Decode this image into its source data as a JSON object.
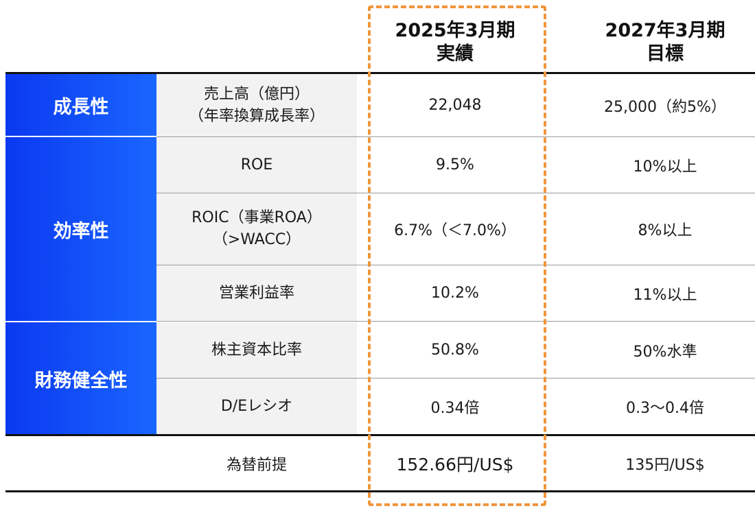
{
  "header": {
    "actual_line1": "2025年3月期",
    "actual_line2": "実績",
    "target_line1": "2027年3月期",
    "target_line2": "目標"
  },
  "categories": {
    "growth": "成長性",
    "efficiency": "効率性",
    "financial_health": "財務健全性"
  },
  "rows": [
    {
      "label_line1": "売上高（億円）",
      "label_line2": "（年率換算成長率）",
      "actual": "22,048",
      "target": "25,000（約5%）"
    },
    {
      "label_line1": "ROE",
      "label_line2": "",
      "actual": "9.5%",
      "target": "10%以上"
    },
    {
      "label_line1": "ROIC（事業ROA）",
      "label_line2": "（>WACC）",
      "actual": "6.7%（＜7.0%）",
      "target": "8%以上"
    },
    {
      "label_line1": "営業利益率",
      "label_line2": "",
      "actual": "10.2%",
      "target": "11%以上"
    },
    {
      "label_line1": "株主資本比率",
      "label_line2": "",
      "actual": "50.8%",
      "target": "50%水準"
    },
    {
      "label_line1": "D/Eレシオ",
      "label_line2": "",
      "actual": "0.34倍",
      "target": "0.3～0.4倍"
    }
  ],
  "fx": {
    "label": "為替前提",
    "actual": "152.66円/US$",
    "target": "135円/US$"
  },
  "colors": {
    "category_gradient_start": "#0b39f0",
    "category_gradient_end": "#1a66ff",
    "label_bg": "#f2f2f2",
    "highlight_dash": "#f0963c"
  }
}
